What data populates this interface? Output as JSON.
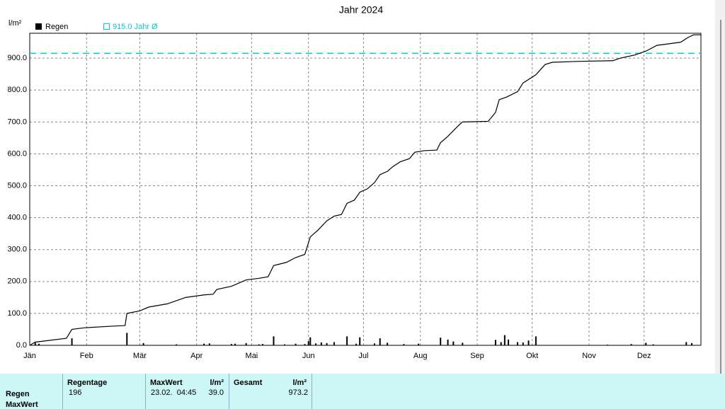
{
  "chart_data": {
    "type": "line",
    "title": "Jahr 2024",
    "y_unit": "l/m²",
    "xlim": [
      0,
      366
    ],
    "ylim": [
      0,
      978
    ],
    "xticks": [
      {
        "value": 0,
        "label": "Jän"
      },
      {
        "value": 31,
        "label": "Feb"
      },
      {
        "value": 60,
        "label": "Mär"
      },
      {
        "value": 91,
        "label": "Apr"
      },
      {
        "value": 121,
        "label": "Mai"
      },
      {
        "value": 152,
        "label": "Jun"
      },
      {
        "value": 182,
        "label": "Jul"
      },
      {
        "value": 213,
        "label": "Aug"
      },
      {
        "value": 244,
        "label": "Sep"
      },
      {
        "value": 274,
        "label": "Okt"
      },
      {
        "value": 305,
        "label": "Nov"
      },
      {
        "value": 335,
        "label": "Dez"
      }
    ],
    "yticks": [
      {
        "value": 0,
        "label": "0.0"
      },
      {
        "value": 100,
        "label": "100.0"
      },
      {
        "value": 200,
        "label": "200.0"
      },
      {
        "value": 300,
        "label": "300.0"
      },
      {
        "value": 400,
        "label": "400.0"
      },
      {
        "value": 500,
        "label": "500.0"
      },
      {
        "value": 600,
        "label": "600.0"
      },
      {
        "value": 700,
        "label": "700.0"
      },
      {
        "value": 800,
        "label": "800.0"
      },
      {
        "value": 900,
        "label": "900.0"
      }
    ],
    "grid": true,
    "bars": {
      "name": "Regen",
      "color": "#000000",
      "x": [
        3,
        5,
        23,
        53,
        62,
        80,
        95,
        98,
        110,
        112,
        118,
        125,
        127,
        133,
        139,
        145,
        150,
        152,
        153,
        156,
        159,
        162,
        166,
        173,
        178,
        180,
        188,
        191,
        195,
        204,
        212,
        224,
        228,
        231,
        236,
        254,
        257,
        259,
        261,
        266,
        269,
        272,
        276,
        315,
        328,
        336,
        340,
        358,
        361
      ],
      "values": [
        8,
        5,
        22,
        39,
        7,
        3,
        5,
        6,
        4,
        5,
        7,
        3,
        4,
        28,
        3,
        5,
        4,
        13,
        25,
        6,
        9,
        7,
        10,
        28,
        5,
        25,
        6,
        22,
        8,
        4,
        5,
        24,
        18,
        12,
        8,
        17,
        10,
        32,
        18,
        10,
        9,
        15,
        28,
        2,
        4,
        8,
        3,
        10,
        7
      ]
    },
    "series": [
      {
        "color": "#000000",
        "x": [
          0,
          3,
          10,
          20,
          23,
          30,
          45,
          52,
          53,
          60,
          65,
          75,
          85,
          95,
          100,
          102,
          110,
          118,
          125,
          130,
          133,
          140,
          145,
          150,
          153,
          157,
          162,
          166,
          170,
          173,
          177,
          180,
          184,
          188,
          191,
          195,
          198,
          202,
          207,
          210,
          215,
          222,
          224,
          228,
          234,
          236,
          250,
          254,
          256,
          260,
          266,
          269,
          276,
          281,
          285,
          300,
          318,
          322,
          330,
          336,
          342,
          355,
          359,
          362,
          366
        ],
        "values": [
          0,
          10,
          15,
          22,
          50,
          55,
          60,
          62,
          100,
          108,
          120,
          130,
          150,
          158,
          160,
          175,
          185,
          205,
          210,
          215,
          250,
          260,
          275,
          285,
          340,
          360,
          390,
          405,
          410,
          445,
          455,
          480,
          490,
          510,
          535,
          545,
          560,
          575,
          585,
          605,
          610,
          612,
          635,
          655,
          690,
          700,
          702,
          730,
          770,
          778,
          795,
          822,
          848,
          880,
          887,
          890,
          892,
          900,
          910,
          922,
          940,
          950,
          965,
          973.2,
          973.2
        ]
      }
    ],
    "reference": {
      "label": "915.0 Jahr Ø",
      "value": 915,
      "color": "#00c8d8"
    }
  },
  "table": {
    "columns": [
      "Regentage",
      "MaxWert",
      "l/m²",
      "Gesamt",
      "l/m²"
    ],
    "rows": [
      {
        "label": "Regen",
        "cells": [
          "196",
          "23.02.  04:45",
          "39.0",
          null,
          "973.2"
        ]
      },
      {
        "label": "MaxWert"
      }
    ]
  }
}
